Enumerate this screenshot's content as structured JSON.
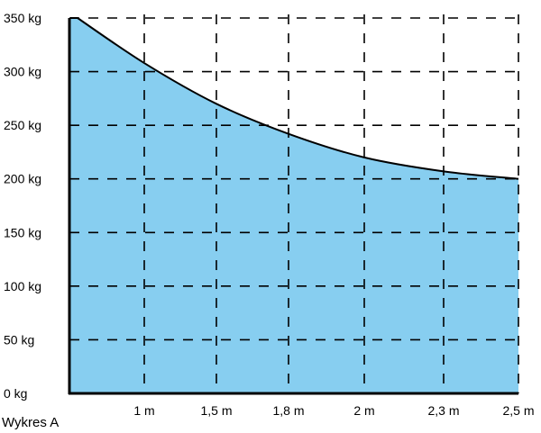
{
  "chart_data": {
    "type": "area",
    "caption": "Wykres A",
    "x_tick_labels": [
      "1 m",
      "1,5 m",
      "1,8 m",
      "2 m",
      "2,3 m",
      "2,5 m"
    ],
    "y_tick_labels": [
      "0 kg",
      "50 kg",
      "100 kg",
      "150 kg",
      "200 kg",
      "250 kg",
      "300 kg",
      "350 kg"
    ],
    "y_ticks": [
      0,
      50,
      100,
      150,
      200,
      250,
      300,
      350
    ],
    "ylim": [
      0,
      350
    ],
    "grid": true,
    "grid_style": "dashed",
    "series": [
      {
        "x": [
          "1 m",
          "1,5 m",
          "1,8 m",
          "2 m",
          "2,3 m",
          "2,5 m"
        ],
        "values": [
          308,
          270,
          242,
          220,
          207,
          200
        ]
      }
    ],
    "curve_start_value": 350,
    "colors": {
      "fill": "#87CEF0",
      "line": "#000000",
      "grid": "#000000"
    }
  }
}
